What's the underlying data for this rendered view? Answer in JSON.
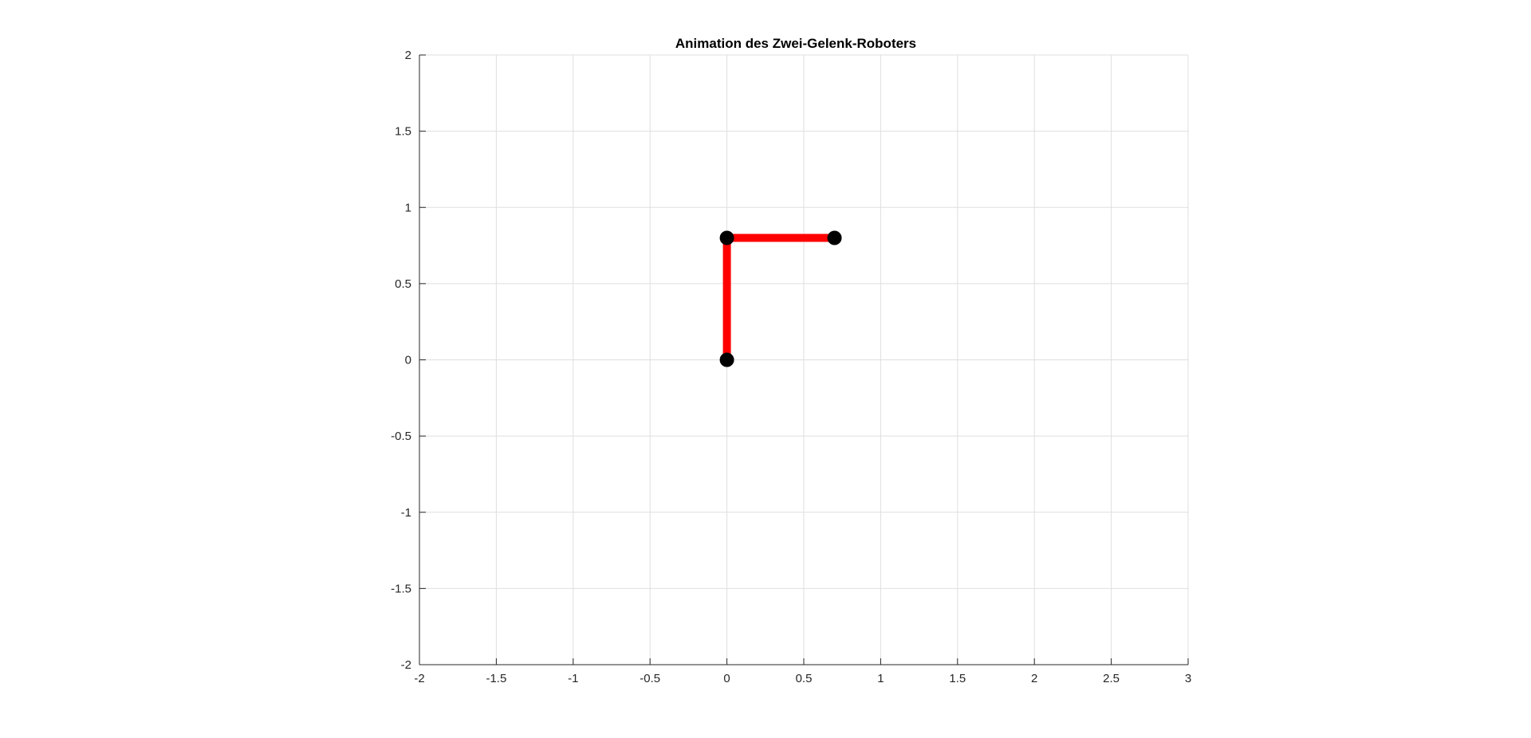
{
  "chart_data": {
    "type": "line",
    "title": "Animation des Zwei-Gelenk-Roboters",
    "xlabel": "",
    "ylabel": "",
    "xlim": [
      -2,
      3
    ],
    "ylim": [
      -2,
      2
    ],
    "grid": true,
    "x_ticks": [
      -2,
      -1.5,
      -1,
      -0.5,
      0,
      0.5,
      1,
      1.5,
      2,
      2.5,
      3
    ],
    "x_tick_labels": [
      "-2",
      "-1.5",
      "-1",
      "-0.5",
      "0",
      "0.5",
      "1",
      "1.5",
      "2",
      "2.5",
      "3"
    ],
    "y_ticks": [
      -2,
      -1.5,
      -1,
      -0.5,
      0,
      0.5,
      1,
      1.5,
      2
    ],
    "y_tick_labels": [
      "-2",
      "-1.5",
      "-1",
      "-0.5",
      "0",
      "0.5",
      "1",
      "1.5",
      "2"
    ],
    "series": [
      {
        "x": [
          0,
          0,
          0.7
        ],
        "y": [
          0,
          0.8,
          0.8
        ],
        "line_color": "#ff0000",
        "marker_color": "#000000",
        "marker": "circle"
      }
    ],
    "joints": [
      {
        "x": 0,
        "y": 0
      },
      {
        "x": 0,
        "y": 0.8
      },
      {
        "x": 0.7,
        "y": 0.8
      }
    ]
  }
}
